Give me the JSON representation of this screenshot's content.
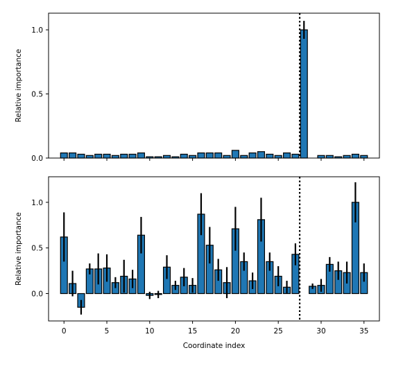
{
  "chart_data": [
    {
      "type": "bar",
      "xlabel": "",
      "ylabel": "Relative importance",
      "x": [
        0,
        1,
        2,
        3,
        4,
        5,
        6,
        7,
        8,
        9,
        10,
        11,
        12,
        13,
        14,
        15,
        16,
        17,
        18,
        19,
        20,
        21,
        22,
        23,
        24,
        25,
        26,
        27,
        28,
        29,
        30,
        31,
        32,
        33,
        34,
        35
      ],
      "values": [
        0.04,
        0.04,
        0.03,
        0.02,
        0.03,
        0.03,
        0.02,
        0.03,
        0.03,
        0.04,
        0.01,
        0.01,
        0.02,
        0.01,
        0.03,
        0.02,
        0.04,
        0.04,
        0.04,
        0.02,
        0.06,
        0.02,
        0.04,
        0.05,
        0.03,
        0.02,
        0.04,
        0.03,
        1.0,
        null,
        0.02,
        0.02,
        0.01,
        0.02,
        0.03,
        0.02
      ],
      "errors": [
        0,
        0,
        0,
        0,
        0,
        0,
        0,
        0,
        0,
        0,
        0,
        0,
        0,
        0,
        0,
        0,
        0,
        0,
        0,
        0,
        0,
        0,
        0,
        0,
        0,
        0,
        0,
        0,
        0.07,
        0,
        0,
        0,
        0,
        0,
        0,
        0
      ],
      "vline_x": 27.5,
      "ylim": [
        0,
        1.13
      ],
      "yticks": [
        0.0,
        0.5,
        1.0
      ],
      "ytick_labels": [
        "0.0",
        "0.5",
        "1.0"
      ],
      "xlim": [
        -1.8,
        36.8
      ],
      "bar_color": "#1f77b4"
    },
    {
      "type": "bar",
      "xlabel": "Coordinate index",
      "ylabel": "Relative importance",
      "x": [
        0,
        1,
        2,
        3,
        4,
        5,
        6,
        7,
        8,
        9,
        10,
        11,
        12,
        13,
        14,
        15,
        16,
        17,
        18,
        19,
        20,
        21,
        22,
        23,
        24,
        25,
        26,
        27,
        28,
        29,
        30,
        31,
        32,
        33,
        34,
        35
      ],
      "values": [
        0.62,
        0.11,
        -0.15,
        0.27,
        0.27,
        0.28,
        0.12,
        0.19,
        0.16,
        0.64,
        -0.02,
        -0.01,
        0.29,
        0.09,
        0.18,
        0.09,
        0.87,
        0.53,
        0.26,
        0.12,
        0.71,
        0.35,
        0.14,
        0.81,
        0.35,
        0.19,
        0.07,
        0.43,
        null,
        0.08,
        0.09,
        0.32,
        0.25,
        0.23,
        1.0,
        0.23
      ],
      "errors": [
        0.27,
        0.14,
        0.08,
        0.06,
        0.17,
        0.15,
        0.06,
        0.18,
        0.1,
        0.2,
        0.04,
        0.04,
        0.13,
        0.05,
        0.1,
        0.08,
        0.23,
        0.2,
        0.12,
        0.17,
        0.24,
        0.1,
        0.09,
        0.24,
        0.1,
        0.11,
        0.07,
        0.12,
        0,
        0.03,
        0.07,
        0.08,
        0.1,
        0.12,
        0.22,
        0.1
      ],
      "vline_x": 27.5,
      "ylim": [
        -0.3,
        1.28
      ],
      "yticks": [
        0.0,
        0.5,
        1.0
      ],
      "ytick_labels": [
        "0.0",
        "0.5",
        "1.0"
      ],
      "xticks": [
        0,
        5,
        10,
        15,
        20,
        25,
        30,
        35
      ],
      "xtick_labels": [
        "0",
        "5",
        "10",
        "15",
        "20",
        "25",
        "30",
        "35"
      ],
      "xlim": [
        -1.8,
        36.8
      ],
      "bar_color": "#1f77b4"
    }
  ]
}
